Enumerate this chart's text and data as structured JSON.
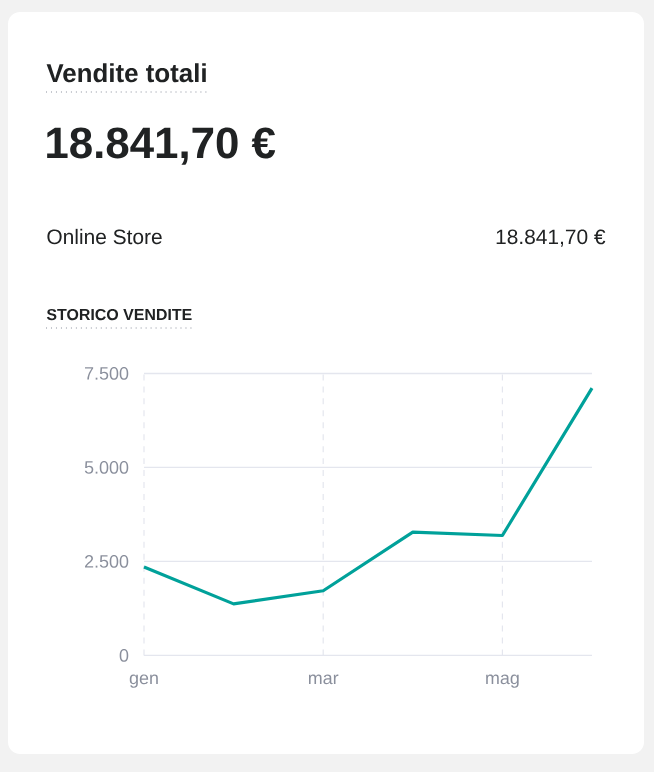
{
  "chart_data": {
    "type": "line",
    "title": "Vendite totali",
    "subtitle": "STORICO VENDITE",
    "annotations": [
      "18.841,70 €",
      "Online Store",
      "18.841,70 €"
    ],
    "categories": [
      "gen",
      null,
      "mar",
      null,
      "mag",
      null
    ],
    "series": [
      {
        "color": "#00a19a",
        "values": [
          2350,
          1370,
          1720,
          3280,
          3190,
          7110
        ]
      }
    ],
    "ylim": [
      0,
      7500
    ],
    "yticks": [
      {
        "value": 0,
        "label": "0"
      },
      {
        "value": 2500,
        "label": "2.500"
      },
      {
        "value": 5000,
        "label": "5.000"
      },
      {
        "value": 7500,
        "label": "7.500"
      }
    ],
    "grid": true,
    "marker": "none",
    "line_style": "solid"
  }
}
